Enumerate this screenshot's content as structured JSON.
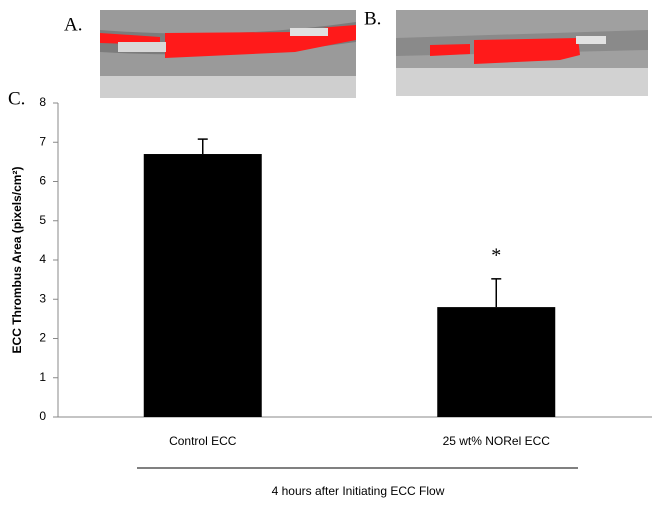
{
  "panel_labels": [
    "A.",
    "B.",
    "C."
  ],
  "chart_data": {
    "type": "bar",
    "categories": [
      "Control ECC",
      "25 wt% NORel ECC"
    ],
    "values": [
      6.7,
      2.8
    ],
    "errors": [
      0.38,
      0.72
    ],
    "annotations": [
      "",
      "*"
    ],
    "color": "#000000",
    "ylim": [
      0,
      8
    ],
    "yticks": [
      0,
      1,
      2,
      3,
      4,
      5,
      6,
      7,
      8
    ],
    "y_label": "ECC Thrombus Area (pixels/cm²)",
    "x_label": "4 hours after Initiating ECC Flow"
  }
}
